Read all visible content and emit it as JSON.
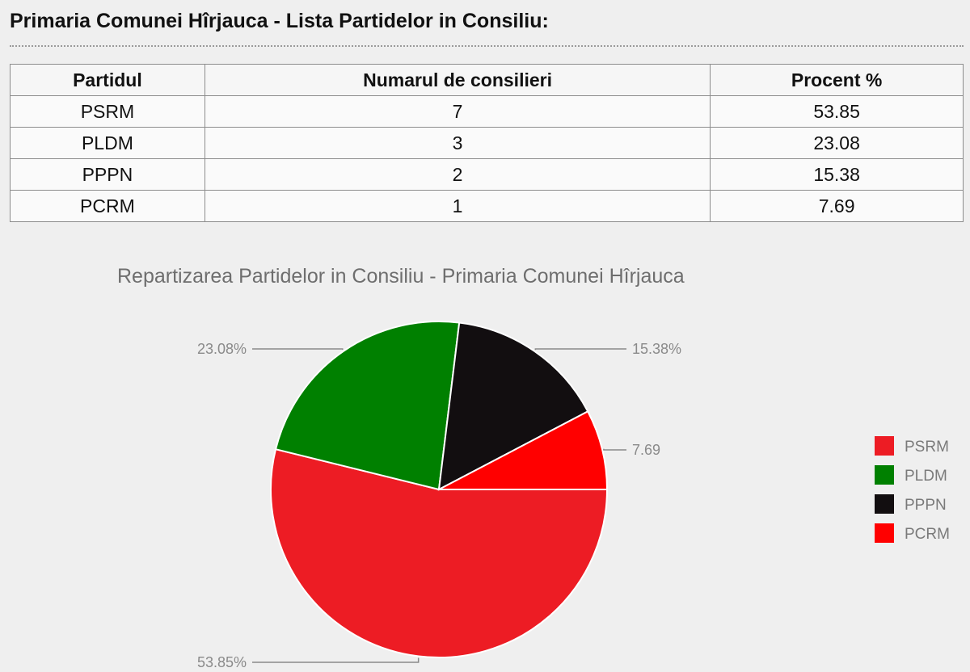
{
  "page": {
    "title": "Primaria Comunei Hîrjauca - Lista Partidelor in Consiliu:"
  },
  "table": {
    "headers": [
      "Partidul",
      "Numarul de consilieri",
      "Procent %"
    ],
    "rows": [
      [
        "PSRM",
        "7",
        "53.85"
      ],
      [
        "PLDM",
        "3",
        "23.08"
      ],
      [
        "PPPN",
        "2",
        "15.38"
      ],
      [
        "PCRM",
        "1",
        "7.69"
      ]
    ]
  },
  "chart_data": {
    "type": "pie",
    "title": "Repartizarea Partidelor in Consiliu - Primaria Comunei Hîrjauca",
    "categories": [
      "PSRM",
      "PLDM",
      "PPPN",
      "PCRM"
    ],
    "values": [
      53.85,
      23.08,
      15.38,
      7.69
    ],
    "slice_labels": [
      "53.85%",
      "23.08%",
      "15.38%",
      "7.69"
    ],
    "colors": [
      "#ed1c24",
      "#008000",
      "#120e10",
      "#ff0000"
    ],
    "legend_position": "right"
  }
}
